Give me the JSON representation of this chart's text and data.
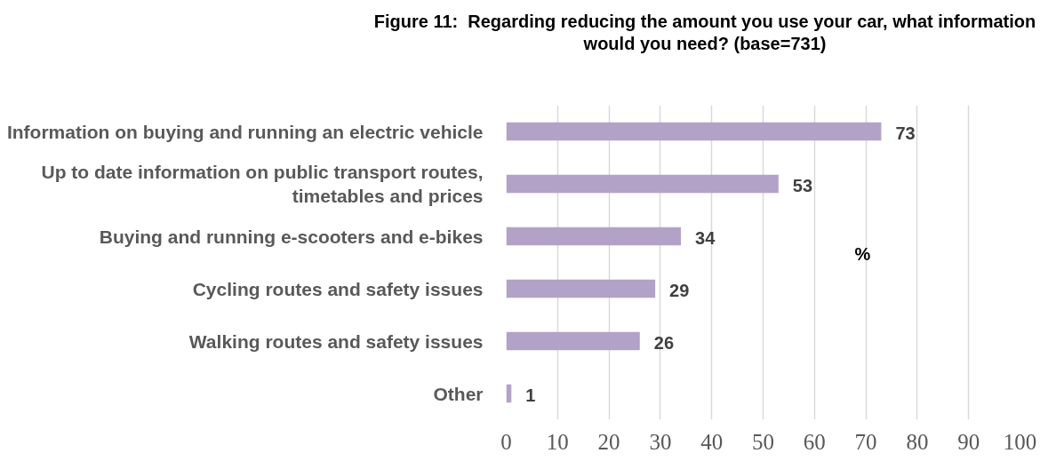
{
  "chart_data": {
    "type": "bar",
    "orientation": "horizontal",
    "title": "Figure 11:  Regarding reducing the amount you use your car, what information would you need? (base=731)",
    "categories": [
      "Information on buying and running an electric vehicle",
      "Up to date information on public transport routes, timetables and prices",
      "Buying and running e-scooters and e-bikes",
      "Cycling routes and safety issues",
      "Walking routes and safety issues",
      "Other"
    ],
    "values": [
      73,
      53,
      34,
      29,
      26,
      1
    ],
    "color": "#b3a2c7",
    "xlim": [
      0,
      100
    ],
    "xticks": [
      0,
      10,
      20,
      30,
      40,
      50,
      60,
      70,
      80,
      90,
      100
    ],
    "grid": "x",
    "data_labels": true,
    "annotations": [
      "%"
    ]
  }
}
